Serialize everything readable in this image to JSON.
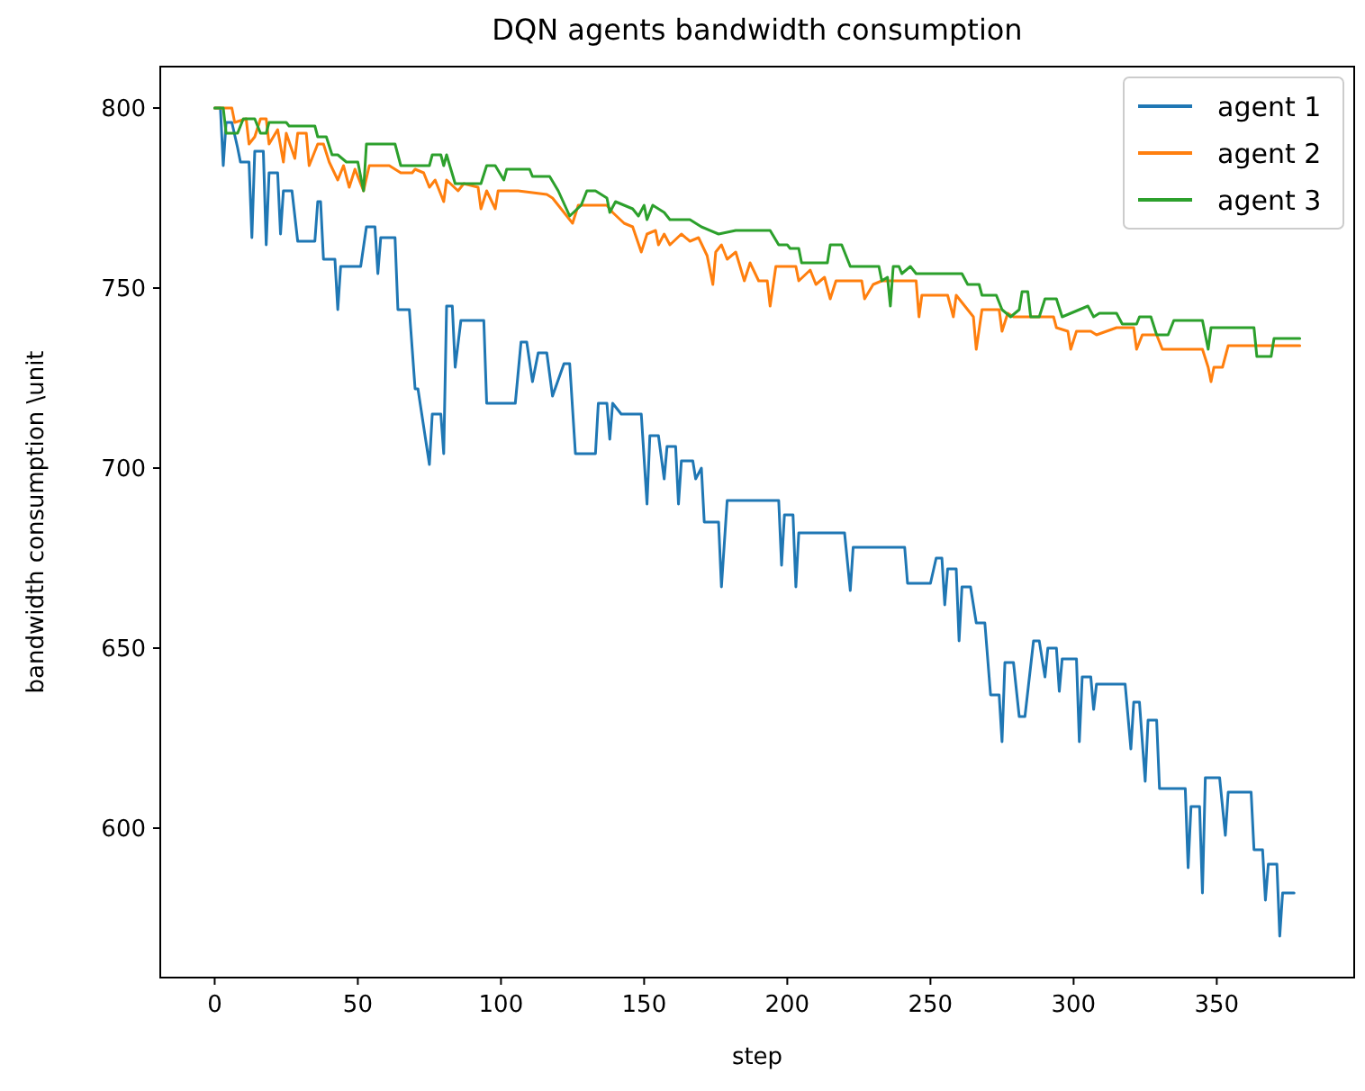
{
  "chart_data": {
    "type": "line",
    "title": "DQN agents bandwidth consumption",
    "xlabel": "step",
    "ylabel": "bandwidth consumption \\unit",
    "xlim": [
      -19,
      398
    ],
    "xticks": [
      0,
      50,
      100,
      150,
      200,
      250,
      300,
      350
    ],
    "ylim": [
      558.5,
      811.5
    ],
    "yticks": [
      600,
      650,
      700,
      750,
      800
    ],
    "grid": false,
    "legend": "top right",
    "line_style": "solid",
    "marker": "none",
    "series": [
      {
        "name": "agent 1",
        "color": "#1f77b4",
        "x": [
          0,
          2,
          3,
          4,
          6,
          8,
          9,
          12,
          13,
          14,
          17,
          18,
          19,
          22,
          23,
          24,
          27,
          29,
          35,
          36,
          37,
          38,
          42,
          43,
          44,
          51,
          53,
          56,
          57,
          58,
          63,
          64,
          68,
          70,
          71,
          75,
          76,
          79,
          80,
          81,
          83,
          84,
          86,
          94,
          95,
          105,
          107,
          109,
          111,
          113,
          116,
          118,
          122,
          124,
          126,
          133,
          134,
          137,
          138,
          139,
          142,
          149,
          151,
          152,
          155,
          157,
          158,
          161,
          162,
          163,
          167,
          168,
          170,
          171,
          176,
          177,
          179,
          197,
          198,
          199,
          202,
          203,
          204,
          220,
          222,
          223,
          241,
          242,
          250,
          252,
          254,
          255,
          256,
          259,
          260,
          261,
          264,
          266,
          269,
          271,
          274,
          275,
          276,
          279,
          281,
          283,
          286,
          288,
          290,
          291,
          294,
          295,
          296,
          301,
          302,
          303,
          306,
          307,
          308,
          318,
          320,
          321,
          323,
          325,
          326,
          329,
          330,
          339,
          340,
          341,
          344,
          345,
          346,
          351,
          353,
          354,
          362,
          363,
          366,
          367,
          368,
          371,
          372,
          373,
          377
        ],
        "values": [
          800,
          800,
          784,
          796,
          796,
          789,
          785,
          785,
          764,
          788,
          788,
          762,
          782,
          782,
          765,
          777,
          777,
          763,
          763,
          774,
          774,
          758,
          758,
          744,
          756,
          756,
          767,
          767,
          754,
          764,
          764,
          744,
          744,
          722,
          722,
          701,
          715,
          715,
          704,
          745,
          745,
          728,
          741,
          741,
          718,
          718,
          735,
          735,
          724,
          732,
          732,
          720,
          729,
          729,
          704,
          704,
          718,
          718,
          708,
          718,
          715,
          715,
          690,
          709,
          709,
          697,
          706,
          706,
          690,
          702,
          702,
          697,
          700,
          685,
          685,
          667,
          691,
          691,
          673,
          687,
          687,
          667,
          682,
          682,
          666,
          678,
          678,
          668,
          668,
          675,
          675,
          662,
          672,
          672,
          652,
          667,
          667,
          657,
          657,
          637,
          637,
          624,
          646,
          646,
          631,
          631,
          652,
          652,
          642,
          650,
          650,
          638,
          647,
          647,
          624,
          642,
          642,
          633,
          640,
          640,
          622,
          635,
          635,
          613,
          630,
          630,
          611,
          611,
          589,
          606,
          606,
          582,
          614,
          614,
          598,
          610,
          610,
          594,
          594,
          580,
          590,
          590,
          570,
          582,
          582
        ]
      },
      {
        "name": "agent 2",
        "color": "#ff7f0e",
        "x": [
          0,
          6,
          7,
          11,
          12,
          14,
          16,
          18,
          19,
          22,
          24,
          25,
          28,
          29,
          32,
          33,
          36,
          38,
          40,
          43,
          45,
          47,
          49,
          52,
          54,
          61,
          65,
          69,
          70,
          73,
          75,
          77,
          80,
          81,
          85,
          87,
          92,
          93,
          95,
          98,
          99,
          106,
          116,
          118,
          121,
          125,
          127,
          137,
          139,
          143,
          146,
          149,
          151,
          154,
          155,
          157,
          159,
          163,
          166,
          169,
          172,
          174,
          175,
          177,
          179,
          182,
          185,
          187,
          190,
          193,
          194,
          196,
          203,
          204,
          208,
          210,
          213,
          215,
          217,
          226,
          227,
          230,
          233,
          245,
          246,
          247,
          256,
          258,
          259,
          265,
          266,
          268,
          274,
          275,
          277,
          279,
          293,
          294,
          298,
          299,
          301,
          306,
          308,
          315,
          321,
          322,
          324,
          329,
          331,
          345,
          347,
          348,
          349,
          352,
          354,
          379
        ],
        "values": [
          800,
          800,
          796,
          797,
          790,
          792,
          797,
          797,
          790,
          794,
          785,
          793,
          786,
          793,
          793,
          784,
          790,
          790,
          785,
          780,
          784,
          778,
          783,
          777,
          784,
          784,
          782,
          782,
          783,
          782,
          778,
          780,
          774,
          780,
          777,
          779,
          778,
          772,
          777,
          772,
          777,
          777,
          776,
          775,
          772,
          768,
          773,
          773,
          771,
          768,
          767,
          760,
          765,
          766,
          762,
          765,
          762,
          765,
          763,
          764,
          759,
          751,
          760,
          762,
          758,
          760,
          752,
          757,
          752,
          752,
          745,
          756,
          756,
          752,
          755,
          751,
          753,
          747,
          752,
          752,
          747,
          751,
          752,
          752,
          742,
          748,
          748,
          742,
          748,
          742,
          733,
          744,
          744,
          738,
          743,
          742,
          742,
          739,
          738,
          733,
          738,
          738,
          737,
          739,
          739,
          733,
          737,
          737,
          733,
          733,
          728,
          724,
          728,
          728,
          734,
          734
        ]
      },
      {
        "name": "agent 3",
        "color": "#2ca02c",
        "x": [
          0,
          3,
          4,
          8,
          10,
          14,
          16,
          18,
          19,
          25,
          26,
          35,
          36,
          39,
          41,
          43,
          46,
          50,
          52,
          53,
          63,
          65,
          75,
          76,
          79,
          80,
          81,
          84,
          93,
          95,
          98,
          101,
          102,
          110,
          111,
          117,
          120,
          124,
          128,
          130,
          133,
          137,
          138,
          140,
          146,
          148,
          150,
          151,
          153,
          157,
          159,
          166,
          170,
          176,
          182,
          194,
          197,
          200,
          201,
          204,
          205,
          214,
          215,
          219,
          222,
          232,
          233,
          235,
          236,
          237,
          239,
          240,
          243,
          245,
          261,
          263,
          267,
          268,
          273,
          275,
          278,
          281,
          282,
          284,
          285,
          288,
          290,
          294,
          296,
          305,
          307,
          309,
          315,
          317,
          322,
          323,
          327,
          329,
          333,
          335,
          345,
          347,
          348,
          363,
          364,
          369,
          370,
          379
        ],
        "values": [
          800,
          800,
          793,
          793,
          797,
          797,
          793,
          793,
          796,
          796,
          795,
          795,
          792,
          792,
          787,
          787,
          785,
          785,
          777,
          790,
          790,
          784,
          784,
          787,
          787,
          784,
          787,
          779,
          779,
          784,
          784,
          780,
          783,
          783,
          781,
          781,
          777,
          770,
          773,
          777,
          777,
          775,
          771,
          774,
          772,
          770,
          773,
          769,
          773,
          771,
          769,
          769,
          767,
          765,
          766,
          766,
          762,
          762,
          761,
          761,
          757,
          757,
          762,
          762,
          756,
          756,
          752,
          753,
          745,
          756,
          756,
          754,
          756,
          754,
          754,
          751,
          751,
          748,
          748,
          744,
          742,
          744,
          749,
          749,
          742,
          742,
          747,
          747,
          742,
          745,
          742,
          743,
          743,
          740,
          740,
          742,
          742,
          737,
          737,
          741,
          741,
          733,
          739,
          739,
          731,
          731,
          736,
          736
        ]
      }
    ]
  }
}
